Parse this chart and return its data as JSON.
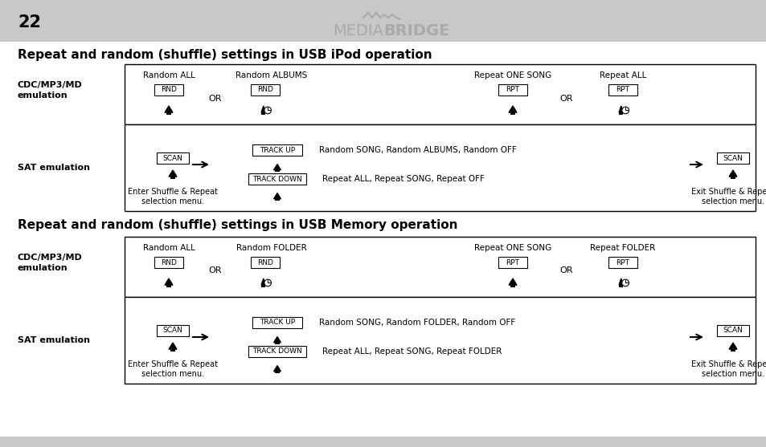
{
  "page_num": "22",
  "brand_text_media": "MEDIA",
  "brand_text_bridge": "BRIDGE",
  "bg_color": "#ffffff",
  "header_bar_color": "#c8c8c8",
  "section1_title": "Repeat and random (shuffle) settings in USB iPod operation",
  "section2_title": "Repeat and random (shuffle) settings in USB Memory operation",
  "label_cdc": "CDC/MP3/MD\nemulation",
  "label_sat": "SAT emulation",
  "note_enter": "Enter Shuffle & Repeat\nselection menu.",
  "note_exit": "Exit Shuffle & Repeat\nselection menu.",
  "random_all": "Random ALL",
  "random_albums": "Random ALBUMS",
  "random_folder": "Random FOLDER",
  "repeat_one_song": "Repeat ONE SONG",
  "repeat_all": "Repeat ALL",
  "repeat_folder": "Repeat FOLDER",
  "or_text": "OR",
  "btn_rnd": "RND",
  "btn_rpt": "RPT",
  "btn_scan": "SCAN",
  "btn_track_up": "TRACK UP",
  "btn_track_down": "TRACK DOWN",
  "sat_random_ipod": "Random SONG, Random ALBUMS, Random OFF",
  "sat_repeat_ipod": "Repeat ALL, Repeat SONG, Repeat OFF",
  "sat_random_mem": "Random SONG, Random FOLDER, Random OFF",
  "sat_repeat_mem": "Repeat ALL, Repeat SONG, Repeat FOLDER",
  "footer_bar_color": "#c8c8c8"
}
